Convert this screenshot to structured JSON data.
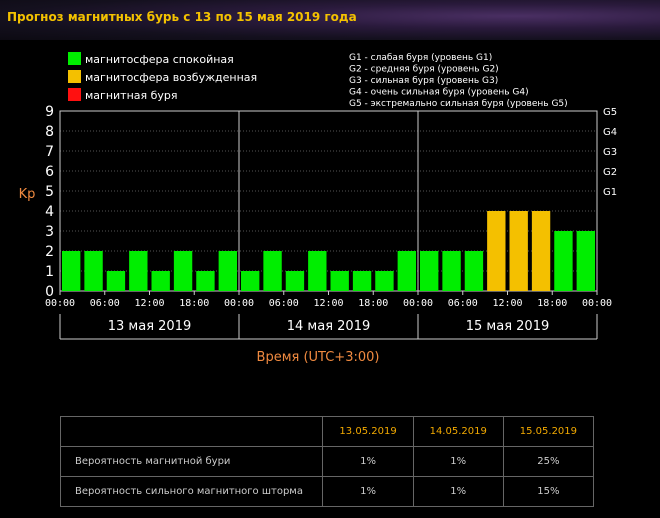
{
  "title": "Прогноз магнитных бурь с 13 по 15 мая 2019 года",
  "chart_data": {
    "type": "bar",
    "title": "Прогноз магнитных бурь с 13 по 15 мая 2019 года",
    "ylabel": "Kp",
    "xlabel": "Время (UTC+3:00)",
    "ylim": [
      0,
      9
    ],
    "yticks": [
      "0",
      "1",
      "2",
      "3",
      "4",
      "5",
      "6",
      "7",
      "8",
      "9"
    ],
    "right_ticks": [
      {
        "kp": 5,
        "label": "G1"
      },
      {
        "kp": 6,
        "label": "G2"
      },
      {
        "kp": 7,
        "label": "G3"
      },
      {
        "kp": 8,
        "label": "G4"
      },
      {
        "kp": 9,
        "label": "G5"
      }
    ],
    "days": [
      "13 мая 2019",
      "14 мая 2019",
      "15 мая 2019"
    ],
    "time_ticks": [
      "00:00",
      "06:00",
      "12:00",
      "18:00",
      "00:00",
      "06:00",
      "12:00",
      "18:00",
      "00:00",
      "06:00",
      "12:00",
      "18:00",
      "00:00"
    ],
    "values": [
      2,
      2,
      1,
      2,
      1,
      2,
      1,
      2,
      1,
      2,
      1,
      2,
      1,
      1,
      1,
      2,
      2,
      2,
      2,
      4,
      4,
      4,
      3,
      3
    ],
    "levels": [
      "calm",
      "calm",
      "calm",
      "calm",
      "calm",
      "calm",
      "calm",
      "calm",
      "calm",
      "calm",
      "calm",
      "calm",
      "calm",
      "calm",
      "calm",
      "calm",
      "calm",
      "calm",
      "calm",
      "excited",
      "excited",
      "excited",
      "calm",
      "calm"
    ],
    "legend": [
      {
        "key": "calm",
        "label": "магнитосфера спокойная",
        "color": "#00ee00"
      },
      {
        "key": "excited",
        "label": "магнитосфера возбужденная",
        "color": "#f4c000"
      },
      {
        "key": "storm",
        "label": "магнитная буря",
        "color": "#ff1010"
      }
    ],
    "storm_legend": [
      "G1 - слабая буря (уровень G1)",
      "G2 - средняя буря (уровень G2)",
      "G3 - сильная буря (уровень G3)",
      "G4 - очень сильная буря (уровень G4)",
      "G5 - экстремально сильная буря (уровень G5)"
    ]
  },
  "colors": {
    "grid": "#555555",
    "axis": "#cccccc",
    "accent": "#f08a40",
    "table_header": "#f2a900"
  },
  "table": {
    "headers": [
      "",
      "13.05.2019",
      "14.05.2019",
      "15.05.2019"
    ],
    "rows": [
      {
        "label": "Вероятность магнитной бури",
        "values": [
          "1%",
          "1%",
          "25%"
        ]
      },
      {
        "label": "Вероятность сильного магнитного шторма",
        "values": [
          "1%",
          "1%",
          "15%"
        ]
      }
    ]
  }
}
